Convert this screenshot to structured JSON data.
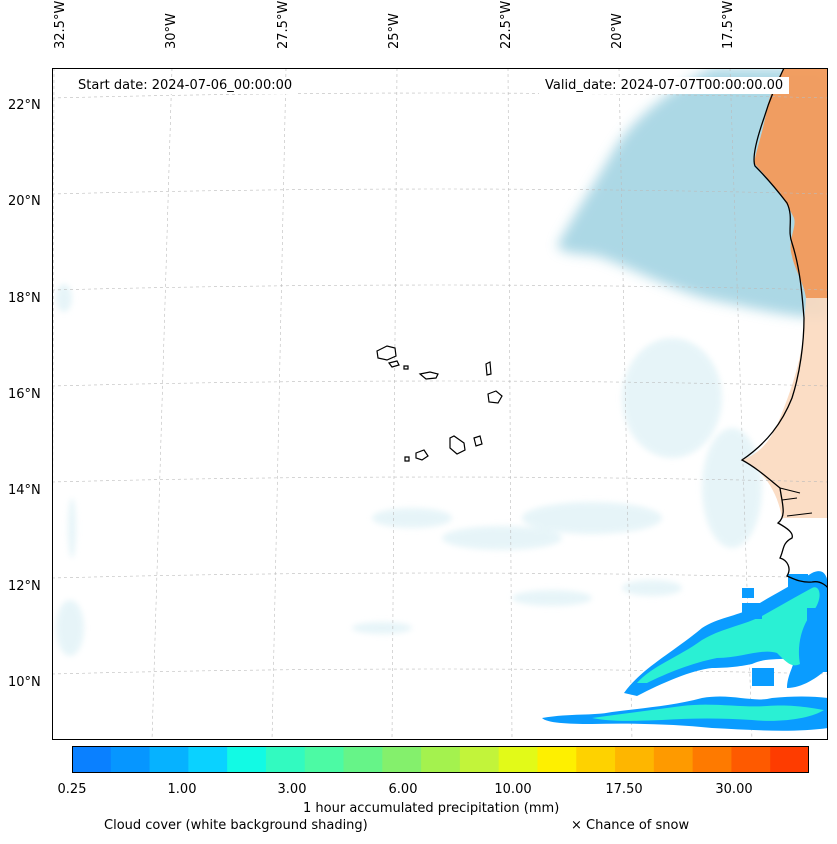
{
  "map": {
    "start_label": "Start date: 2024-07-06_00:00:00",
    "valid_label": "Valid_date: 2024-07-07T00:00:00.00",
    "lon_labels": [
      "32.5°W",
      "30°W",
      "27.5°W",
      "25°W",
      "22.5°W",
      "20°W",
      "17.5°W"
    ],
    "lat_labels": [
      "22°N",
      "20°N",
      "18°N",
      "16°N",
      "14°N",
      "12°N",
      "10°N"
    ]
  },
  "colorbar": {
    "colors": [
      "#0a80ff",
      "#0696ff",
      "#06b2ff",
      "#0ad2ff",
      "#12fae4",
      "#32fac0",
      "#4cfaa4",
      "#66f488",
      "#84f06c",
      "#a4f24e",
      "#c2f43a",
      "#e2fa18",
      "#fef000",
      "#fed200",
      "#feb600",
      "#fe9a00",
      "#fe7a00",
      "#fe5a00",
      "#fe3c00"
    ],
    "tick_labels": [
      "0.25",
      "1.00",
      "3.00",
      "6.00",
      "10.00",
      "17.50",
      "30.00"
    ],
    "label": "1 hour accumulated precipitation (mm)"
  },
  "legend": {
    "cloud": "Cloud cover (white background shading)",
    "snow": "× Chance of snow"
  }
}
